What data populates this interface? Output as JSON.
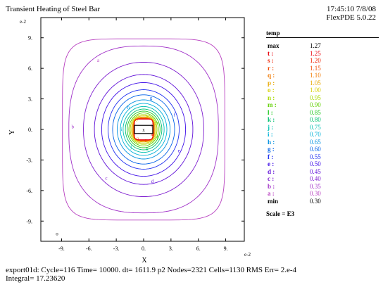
{
  "header": {
    "title": "Transient Heating of Steel Bar",
    "timestamp": "17:45:10 7/8/08",
    "version": "FlexPDE 5.0.22"
  },
  "footer": {
    "line1": "export01d:  Cycle=116  Time= 10000.  dt= 1611.9  p2  Nodes=2321 Cells=1130 RMS Err= 2.e-4",
    "line2": "Integral=   17.23620"
  },
  "legend": {
    "title": "temp",
    "scale": "Scale = E3",
    "entries": [
      {
        "label": "max",
        "value": "1.27",
        "color": "#000000"
      },
      {
        "label": "t :",
        "value": "1.25",
        "color": "#e8000b"
      },
      {
        "label": "s :",
        "value": "1.20",
        "color": "#f02000"
      },
      {
        "label": "r :",
        "value": "1.15",
        "color": "#f04800"
      },
      {
        "label": "q :",
        "value": "1.10",
        "color": "#f07800"
      },
      {
        "label": "p :",
        "value": "1.05",
        "color": "#e8a800"
      },
      {
        "label": "o :",
        "value": "1.00",
        "color": "#d8d000"
      },
      {
        "label": "n :",
        "value": "0.95",
        "color": "#a8d800"
      },
      {
        "label": "m :",
        "value": "0.90",
        "color": "#60d000"
      },
      {
        "label": "l :",
        "value": "0.85",
        "color": "#20c820"
      },
      {
        "label": "k :",
        "value": "0.80",
        "color": "#00c070"
      },
      {
        "label": "j :",
        "value": "0.75",
        "color": "#00c0b0"
      },
      {
        "label": "i :",
        "value": "0.70",
        "color": "#00b0d8"
      },
      {
        "label": "h :",
        "value": "0.65",
        "color": "#0090e0"
      },
      {
        "label": "g :",
        "value": "0.60",
        "color": "#0060e8"
      },
      {
        "label": "f :",
        "value": "0.55",
        "color": "#2030f0"
      },
      {
        "label": "e :",
        "value": "0.50",
        "color": "#4010e8"
      },
      {
        "label": "d :",
        "value": "0.45",
        "color": "#6010d8"
      },
      {
        "label": "c :",
        "value": "0.40",
        "color": "#8020d0"
      },
      {
        "label": "b :",
        "value": "0.35",
        "color": "#a030c8"
      },
      {
        "label": "a :",
        "value": "0.30",
        "color": "#b840c0"
      },
      {
        "label": "min",
        "value": "0.30",
        "color": "#000000"
      }
    ]
  },
  "chart_data": {
    "type": "contour",
    "title": "Transient Heating of Steel Bar",
    "variable": "temp",
    "xlabel": "X",
    "ylabel": "Y",
    "x_exponent_label": "e-2",
    "y_exponent_label": "e-2",
    "xlim": [
      -10.5,
      10.5
    ],
    "ylim": [
      -10.5,
      10.5
    ],
    "xticks": [
      -9,
      -6,
      -3,
      0,
      3,
      6,
      9
    ],
    "yticks": [
      -9,
      -6,
      -3,
      0,
      3,
      6,
      9
    ],
    "xtick_labels": [
      "-9.",
      "-6.",
      "-3.",
      "0.",
      "3.",
      "6.",
      "9."
    ],
    "ytick_labels": [
      "9.",
      "6.",
      "3.",
      "0.",
      "-3.",
      "-6.",
      "-9."
    ],
    "heater_box": {
      "x": [
        -1,
        1
      ],
      "y": [
        -0.4,
        0.4
      ]
    },
    "contours": [
      {
        "label": "a",
        "level": 0.3,
        "half_width": 8.9,
        "exponent": 6,
        "color": "#b840c0"
      },
      {
        "label": "b",
        "level": 0.35,
        "half_width": 8.2,
        "exponent": 2.6,
        "color": "#a030c8"
      },
      {
        "label": "c",
        "level": 0.4,
        "half_width": 6.6,
        "exponent": 2.1,
        "color": "#8020d0"
      },
      {
        "label": "d",
        "level": 0.45,
        "half_width": 5.4,
        "exponent": 2.0,
        "color": "#6010d8"
      },
      {
        "label": "e",
        "level": 0.5,
        "half_width": 4.6,
        "exponent": 2.0,
        "color": "#4010e8"
      },
      {
        "label": "f",
        "level": 0.55,
        "half_width": 3.9,
        "exponent": 2.0,
        "color": "#2030f0"
      },
      {
        "label": "g",
        "level": 0.6,
        "half_width": 3.4,
        "exponent": 2.0,
        "color": "#0060e8"
      },
      {
        "label": "h",
        "level": 0.65,
        "half_width": 2.9,
        "exponent": 2.0,
        "color": "#0090e0"
      },
      {
        "label": "i",
        "level": 0.7,
        "half_width": 2.55,
        "exponent": 2.0,
        "color": "#00b0d8"
      },
      {
        "label": "j",
        "level": 0.75,
        "half_width": 2.25,
        "exponent": 2.0,
        "color": "#00c0b0"
      },
      {
        "label": "k",
        "level": 0.8,
        "half_width": 2.0,
        "exponent": 2.0,
        "color": "#00c070"
      },
      {
        "label": "l",
        "level": 0.85,
        "half_width": 1.8,
        "exponent": 2.0,
        "color": "#20c820"
      },
      {
        "label": "m",
        "level": 0.9,
        "half_width": 1.62,
        "exponent": 2.0,
        "color": "#60d000"
      },
      {
        "label": "n",
        "level": 0.95,
        "half_width": 1.46,
        "exponent": 2.2,
        "color": "#a8d800"
      },
      {
        "label": "o",
        "level": 1.0,
        "half_width": 1.33,
        "exponent": 2.4,
        "color": "#d8d000"
      },
      {
        "label": "p",
        "level": 1.05,
        "half_width": 1.22,
        "exponent": 2.8,
        "color": "#e8a800"
      },
      {
        "label": "q",
        "level": 1.1,
        "half_width": 1.14,
        "exponent": 3.2,
        "color": "#f07800"
      },
      {
        "label": "r",
        "level": 1.15,
        "half_width": 1.08,
        "exponent": 4.0,
        "color": "#f04800"
      },
      {
        "label": "s",
        "level": 1.2,
        "half_width": 1.04,
        "exponent": 5.0,
        "color": "#f02000"
      },
      {
        "label": "t",
        "level": 1.25,
        "half_width": 1.01,
        "exponent": 7.0,
        "color": "#e8000b"
      }
    ],
    "point_labels": [
      {
        "text": "x",
        "x": 0,
        "y": 0
      },
      {
        "text": "o",
        "x": -9.5,
        "y": -10.2
      }
    ]
  }
}
